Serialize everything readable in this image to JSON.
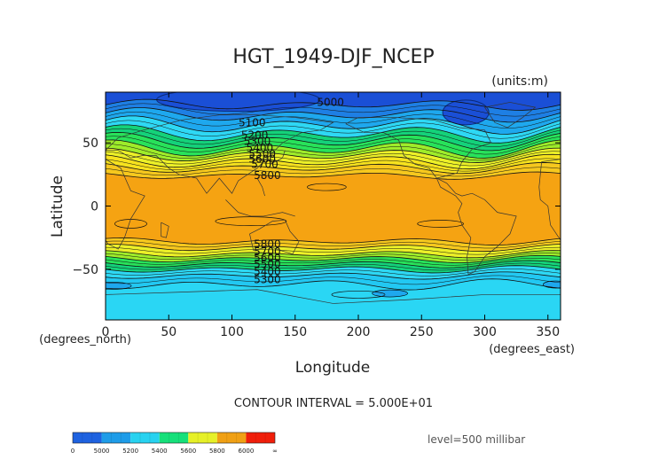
{
  "chart_data": {
    "type": "heatmap",
    "title": "HGT_1949-DJF_NCEP",
    "units": "(units:m)",
    "xlabel": "Longitude",
    "ylabel": "Latitude",
    "x_unit_label": "(degrees_east)",
    "y_unit_label": "(degrees_north)",
    "xlim": [
      0,
      360
    ],
    "ylim": [
      -90,
      90
    ],
    "x_ticks": [
      0,
      50,
      100,
      150,
      200,
      250,
      300,
      350
    ],
    "y_ticks": [
      -50,
      0,
      50
    ],
    "contour_interval_text": "CONTOUR INTERVAL = 5.000E+01",
    "level_text": "level=500 millibar",
    "contour_labels": [
      {
        "text": "5000",
        "x": 178,
        "y": 82
      },
      {
        "text": "5100",
        "x": 116,
        "y": 66
      },
      {
        "text": "5200",
        "x": 118,
        "y": 56
      },
      {
        "text": "5300",
        "x": 120,
        "y": 51
      },
      {
        "text": "5400",
        "x": 122,
        "y": 46
      },
      {
        "text": "5500",
        "x": 124,
        "y": 41
      },
      {
        "text": "5600",
        "x": 124,
        "y": 37
      },
      {
        "text": "5700",
        "x": 126,
        "y": 33
      },
      {
        "text": "5800",
        "x": 128,
        "y": 24
      },
      {
        "text": "5800",
        "x": 128,
        "y": -30
      },
      {
        "text": "5700",
        "x": 128,
        "y": -36
      },
      {
        "text": "5600",
        "x": 128,
        "y": -41
      },
      {
        "text": "5500",
        "x": 128,
        "y": -46
      },
      {
        "text": "5400",
        "x": 128,
        "y": -52
      },
      {
        "text": "5300",
        "x": 128,
        "y": -58
      }
    ],
    "colorbar": {
      "levels": [
        "0",
        "5000",
        "5200",
        "5400",
        "5600",
        "5800",
        "6000",
        "∞"
      ],
      "colors": [
        "#1e62e0",
        "#1e9ce8",
        "#28d2f0",
        "#16e07a",
        "#e6f028",
        "#f0a014",
        "#f01e0a"
      ]
    }
  }
}
